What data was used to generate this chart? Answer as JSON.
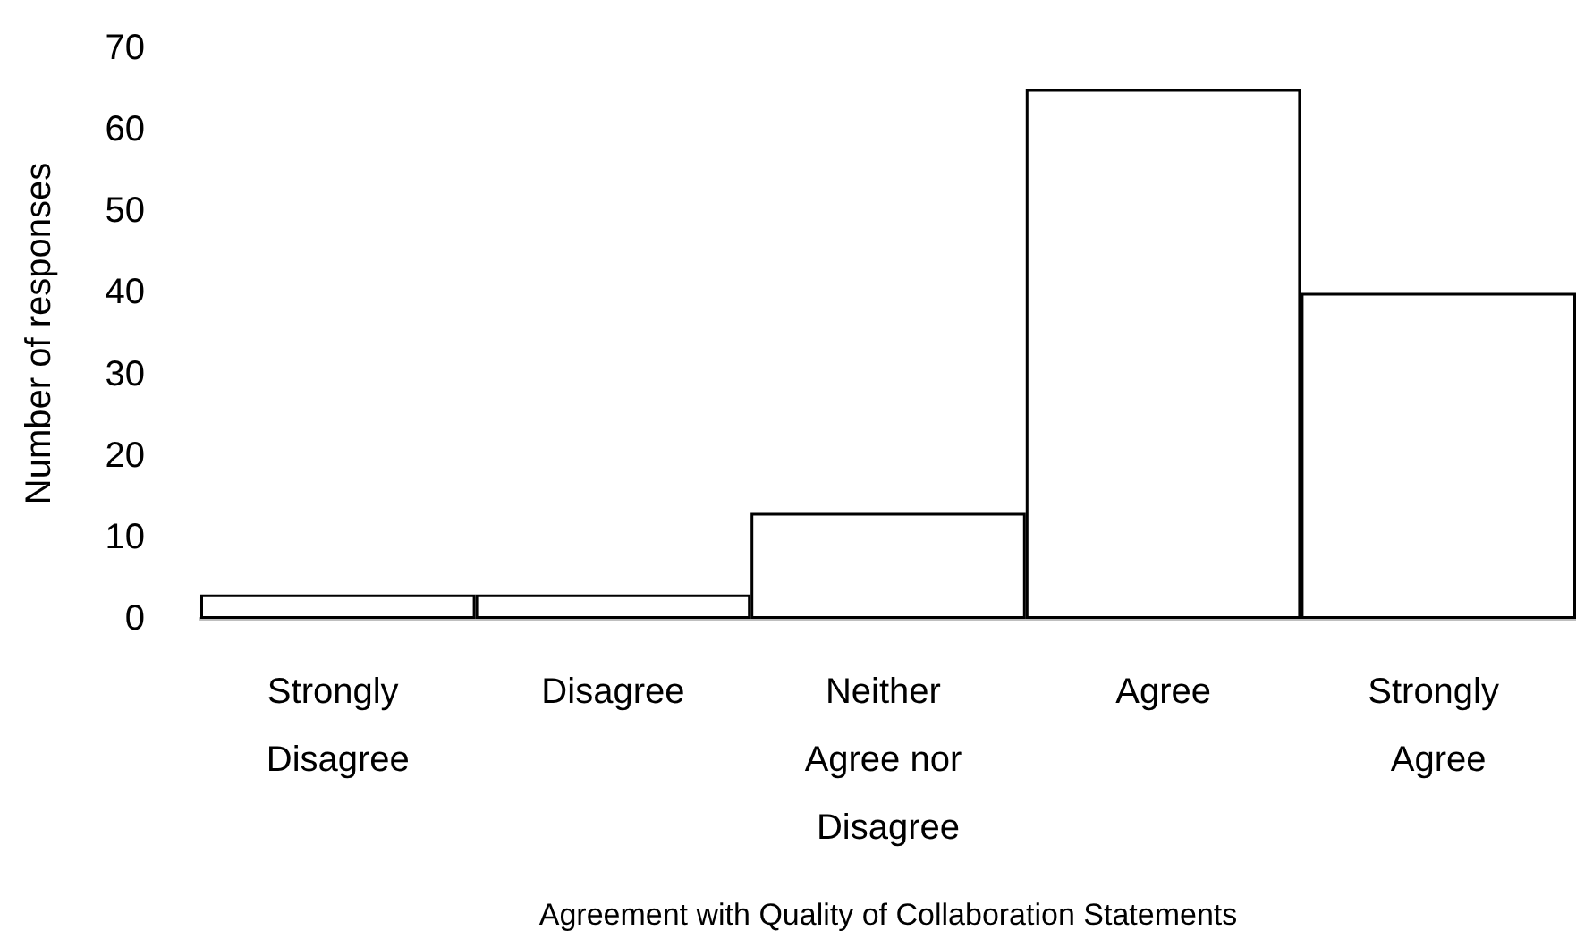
{
  "chart_data": {
    "type": "bar",
    "xlabel": "Agreement with Quality of Collaboration Statements",
    "ylabel": "Number of responses",
    "categories": [
      "Strongly Disagree",
      "Disagree",
      "Neither Agree nor Disagree",
      "Agree",
      "Strongly Agree"
    ],
    "values": [
      3,
      3,
      13,
      65,
      40
    ],
    "color": "#ffffff",
    "ylim": [
      0,
      70
    ],
    "yticks": [
      0,
      10,
      20,
      30,
      40,
      50,
      60,
      70
    ]
  }
}
